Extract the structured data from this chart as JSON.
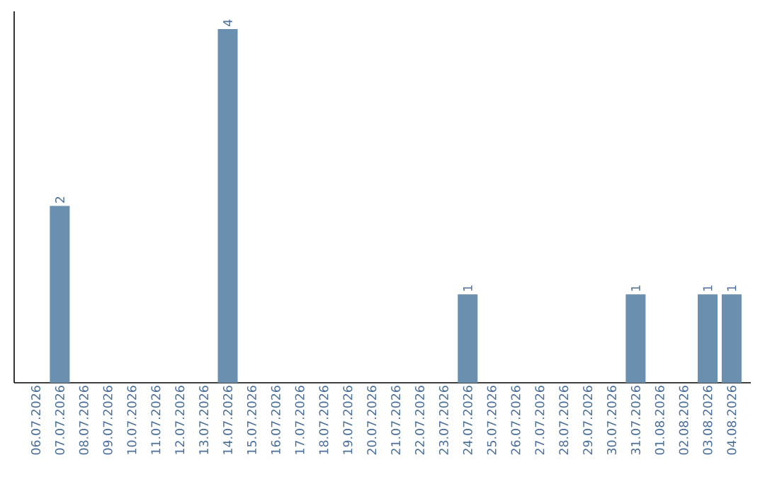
{
  "chart_data": {
    "type": "bar",
    "categories": [
      "06.07.2026",
      "07.07.2026",
      "08.07.2026",
      "09.07.2026",
      "10.07.2026",
      "11.07.2026",
      "12.07.2026",
      "13.07.2026",
      "14.07.2026",
      "15.07.2026",
      "16.07.2026",
      "17.07.2026",
      "18.07.2026",
      "19.07.2026",
      "20.07.2026",
      "21.07.2026",
      "22.07.2026",
      "23.07.2026",
      "24.07.2026",
      "25.07.2026",
      "26.07.2026",
      "27.07.2026",
      "28.07.2026",
      "29.07.2026",
      "30.07.2026",
      "31.07.2026",
      "01.08.2026",
      "02.08.2026",
      "03.08.2026",
      "04.08.2026"
    ],
    "values": [
      0,
      2,
      0,
      0,
      0,
      0,
      0,
      0,
      4,
      0,
      0,
      0,
      0,
      0,
      0,
      0,
      0,
      0,
      1,
      0,
      0,
      0,
      0,
      0,
      0,
      1,
      0,
      0,
      1,
      1
    ],
    "value_labels": [
      null,
      "2",
      null,
      null,
      null,
      null,
      null,
      null,
      "4",
      null,
      null,
      null,
      null,
      null,
      null,
      null,
      null,
      null,
      "1",
      null,
      null,
      null,
      null,
      null,
      null,
      "1",
      null,
      null,
      "1",
      "1"
    ],
    "color": "#6b8fae"
  }
}
